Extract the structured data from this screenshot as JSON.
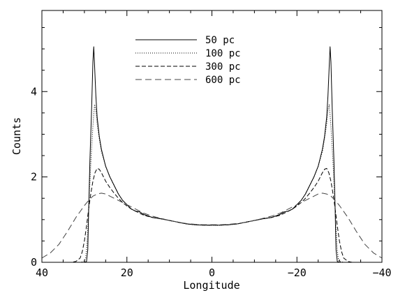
{
  "chart_data": {
    "type": "line",
    "xlabel": "Longitude",
    "ylabel": "Counts",
    "xlim": [
      40,
      -40
    ],
    "ylim": [
      0,
      5.9
    ],
    "x_ticks": [
      40,
      20,
      0,
      -20,
      -40
    ],
    "x_tick_labels": [
      "40",
      "20",
      "0",
      "−20",
      "−40"
    ],
    "y_ticks": [
      0,
      2,
      4
    ],
    "y_tick_labels": [
      "0",
      "2",
      "4"
    ],
    "legend_position": "top-center",
    "series": [
      {
        "name": "50 pc",
        "style": "solid",
        "x": [
          40,
          35,
          31,
          30,
          29.5,
          29.2,
          29,
          28.7,
          28.3,
          28,
          27.8,
          27.6,
          27.3,
          27,
          26.5,
          26,
          25,
          24,
          23,
          22,
          21,
          20,
          19,
          18,
          17,
          16,
          14,
          12,
          10,
          8,
          6,
          4,
          2,
          0,
          -2,
          -4,
          -6,
          -8,
          -10,
          -12,
          -14,
          -16,
          -17,
          -18,
          -19,
          -20,
          -21,
          -22,
          -23,
          -24,
          -25,
          -26,
          -26.5,
          -27,
          -27.3,
          -27.6,
          -27.8,
          -28,
          -28.3,
          -28.7,
          -29,
          -29.2,
          -29.5,
          -30,
          -31,
          -35,
          -40
        ],
        "y": [
          0,
          0,
          0,
          0,
          0.02,
          0.3,
          1.2,
          2.4,
          3.6,
          4.7,
          5.05,
          4.6,
          3.9,
          3.4,
          2.95,
          2.65,
          2.25,
          2.0,
          1.8,
          1.6,
          1.45,
          1.35,
          1.25,
          1.2,
          1.18,
          1.12,
          1.05,
          1.02,
          0.98,
          0.94,
          0.9,
          0.88,
          0.87,
          0.87,
          0.87,
          0.88,
          0.9,
          0.94,
          0.98,
          1.02,
          1.05,
          1.12,
          1.18,
          1.2,
          1.25,
          1.35,
          1.45,
          1.6,
          1.8,
          2.0,
          2.25,
          2.65,
          2.95,
          3.4,
          3.9,
          4.6,
          5.05,
          4.7,
          3.6,
          2.4,
          1.2,
          0.3,
          0.02,
          0,
          0,
          0,
          0
        ]
      },
      {
        "name": "100 pc",
        "style": "dotted",
        "x": [
          40,
          35,
          31,
          30,
          29.7,
          29.4,
          29.1,
          28.8,
          28.4,
          28,
          27.6,
          27.3,
          27,
          26.5,
          26,
          25,
          24,
          23,
          22,
          21,
          20,
          19,
          18,
          17,
          16,
          14,
          12,
          10,
          8,
          6,
          4,
          2,
          0,
          -2,
          -4,
          -6,
          -8,
          -10,
          -12,
          -14,
          -16,
          -17,
          -18,
          -19,
          -20,
          -21,
          -22,
          -23,
          -24,
          -25,
          -26,
          -26.5,
          -27,
          -27.3,
          -27.6,
          -28,
          -28.4,
          -28.8,
          -29.1,
          -29.4,
          -29.7,
          -30,
          -31,
          -35,
          -40
        ],
        "y": [
          0,
          0,
          0,
          0.02,
          0.1,
          0.4,
          1.0,
          1.7,
          2.5,
          3.2,
          3.7,
          3.55,
          3.25,
          2.9,
          2.6,
          2.25,
          2.0,
          1.8,
          1.6,
          1.45,
          1.35,
          1.25,
          1.2,
          1.18,
          1.12,
          1.05,
          1.02,
          0.98,
          0.94,
          0.9,
          0.88,
          0.87,
          0.87,
          0.87,
          0.88,
          0.9,
          0.94,
          0.98,
          1.02,
          1.05,
          1.12,
          1.18,
          1.2,
          1.25,
          1.35,
          1.45,
          1.6,
          1.8,
          2.0,
          2.25,
          2.6,
          2.9,
          3.25,
          3.55,
          3.7,
          3.2,
          2.5,
          1.7,
          1.0,
          0.4,
          0.1,
          0.02,
          0,
          0,
          0
        ]
      },
      {
        "name": "300 pc",
        "style": "dashed",
        "x": [
          40,
          35,
          33,
          32,
          31,
          30.5,
          30,
          29.5,
          29,
          28.5,
          28,
          27.5,
          27,
          26.5,
          26,
          25.5,
          25,
          24,
          23,
          22,
          21,
          20,
          19,
          18,
          17,
          16,
          14,
          12,
          10,
          8,
          6,
          4,
          2,
          0,
          -2,
          -4,
          -6,
          -8,
          -10,
          -12,
          -14,
          -16,
          -17,
          -18,
          -19,
          -20,
          -21,
          -22,
          -23,
          -24,
          -25,
          -25.5,
          -26,
          -26.5,
          -27,
          -27.5,
          -28,
          -28.5,
          -29,
          -29.5,
          -30,
          -30.5,
          -31,
          -32,
          -33,
          -35,
          -40
        ],
        "y": [
          0,
          0,
          0,
          0.02,
          0.1,
          0.25,
          0.5,
          0.85,
          1.25,
          1.6,
          1.9,
          2.1,
          2.2,
          2.18,
          2.1,
          2.0,
          1.9,
          1.75,
          1.62,
          1.5,
          1.4,
          1.32,
          1.25,
          1.2,
          1.15,
          1.1,
          1.05,
          1.02,
          0.98,
          0.94,
          0.9,
          0.88,
          0.87,
          0.87,
          0.87,
          0.88,
          0.9,
          0.94,
          0.98,
          1.02,
          1.05,
          1.1,
          1.15,
          1.2,
          1.25,
          1.32,
          1.4,
          1.5,
          1.62,
          1.75,
          1.9,
          2.0,
          2.1,
          2.18,
          2.2,
          2.1,
          1.9,
          1.6,
          1.25,
          0.85,
          0.5,
          0.25,
          0.1,
          0.02,
          0,
          0,
          0
        ]
      },
      {
        "name": "600 pc",
        "style": "longdash",
        "x": [
          40,
          38,
          36,
          34,
          32,
          30,
          29,
          28,
          27,
          26,
          25,
          24,
          23,
          22,
          21,
          20,
          19,
          18,
          17,
          16,
          14,
          12,
          10,
          8,
          6,
          4,
          2,
          0,
          -2,
          -4,
          -6,
          -8,
          -10,
          -12,
          -14,
          -16,
          -17,
          -18,
          -19,
          -20,
          -21,
          -22,
          -23,
          -24,
          -25,
          -26,
          -27,
          -28,
          -29,
          -30,
          -32,
          -34,
          -36,
          -38,
          -40
        ],
        "y": [
          0.1,
          0.22,
          0.42,
          0.72,
          1.05,
          1.33,
          1.45,
          1.55,
          1.6,
          1.62,
          1.6,
          1.55,
          1.5,
          1.45,
          1.4,
          1.35,
          1.3,
          1.25,
          1.2,
          1.15,
          1.08,
          1.03,
          0.98,
          0.94,
          0.91,
          0.89,
          0.88,
          0.88,
          0.88,
          0.89,
          0.91,
          0.94,
          0.98,
          1.03,
          1.08,
          1.15,
          1.2,
          1.25,
          1.3,
          1.35,
          1.4,
          1.45,
          1.5,
          1.55,
          1.6,
          1.62,
          1.6,
          1.55,
          1.45,
          1.33,
          1.05,
          0.72,
          0.42,
          0.22,
          0.1
        ]
      }
    ]
  }
}
